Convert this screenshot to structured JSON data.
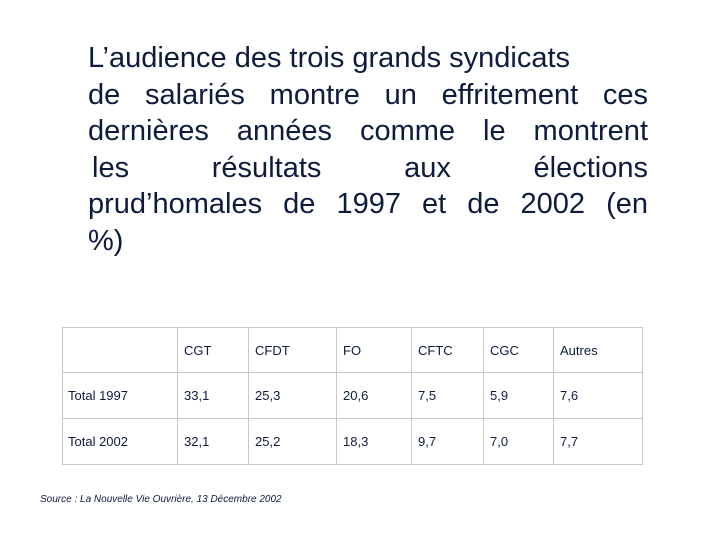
{
  "title": {
    "lines": [
      "L’audience des trois grands syndicats",
      "de salariés montre un effritement ces",
      "dernières années comme le montrent",
      "les résultats aux élections",
      "prud’homales de 1997 et de 2002 (en",
      "%)"
    ]
  },
  "table": {
    "headers": [
      "",
      "CGT",
      "CFDT",
      "FO",
      "CFTC",
      "CGC",
      "Autres"
    ],
    "rows": [
      {
        "label": "Total 1997",
        "values": [
          "33,1",
          "25,3",
          "20,6",
          "7,5",
          "5,9",
          "7,6"
        ]
      },
      {
        "label": "Total 2002",
        "values": [
          "32,1",
          "25,2",
          "18,3",
          "9,7",
          "7,0",
          "7,7"
        ]
      }
    ]
  },
  "source": "Source : La Nouvelle Vie Ouvrière, 13 Décembre 2002"
}
